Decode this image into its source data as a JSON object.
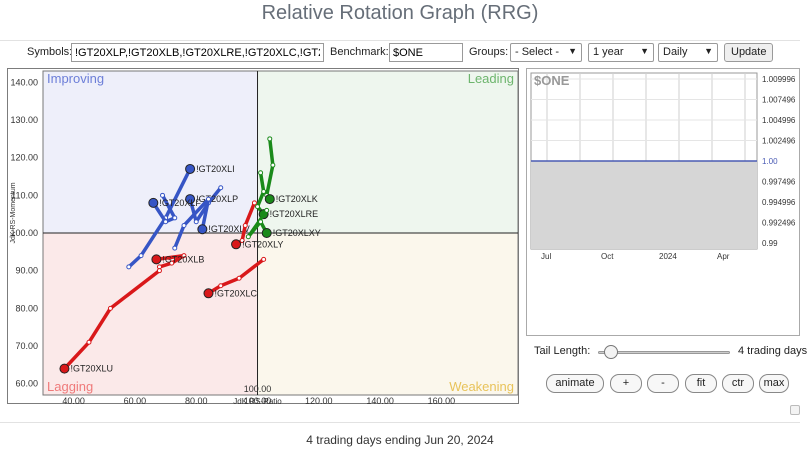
{
  "title": "Relative Rotation Graph (RRG)",
  "toolbar": {
    "symbols_label": "Symbols:",
    "symbols_value": "!GT20XLP,!GT20XLB,!GT20XLRE,!GT20XLC,!GT2",
    "benchmark_label": "Benchmark:",
    "benchmark_value": "$ONE",
    "groups_label": "Groups:",
    "groups_value": "- Select -",
    "period_value": "1 year",
    "frequency_value": "Daily",
    "update_label": "Update"
  },
  "chart_data": {
    "type": "scatter",
    "xlabel": "JdK RS-Ratio",
    "ylabel": "JdK RS-Momentum",
    "xlim": [
      30,
      185
    ],
    "ylim": [
      57,
      143
    ],
    "center": [
      100,
      100
    ],
    "x_ticks": [
      "40.00",
      "60.00",
      "80.00",
      "100.00",
      "120.00",
      "140.00",
      "160.00"
    ],
    "y_ticks": [
      "60.00",
      "70.00",
      "80.00",
      "90.00",
      "100.00",
      "110.00",
      "120.00",
      "130.00",
      "140.00"
    ],
    "quadrants": [
      {
        "name": "Improving",
        "color": "#6c7ed8",
        "fill": "#eeeffa"
      },
      {
        "name": "Leading",
        "color": "#6db56d",
        "fill": "#eef6ee"
      },
      {
        "name": "Lagging",
        "color": "#ef7a7a",
        "fill": "#fbe9e9"
      },
      {
        "name": "Weakening",
        "color": "#e8c35a",
        "fill": "#fbf7ec"
      }
    ],
    "series": [
      {
        "name": "!GT20XLI",
        "quadrant": "Improving",
        "color": "#3655c5",
        "points": [
          [
            58,
            91
          ],
          [
            62,
            94
          ],
          [
            70,
            104
          ],
          [
            78,
            117
          ]
        ]
      },
      {
        "name": "!GT20XLP",
        "quadrant": "Improving",
        "color": "#3655c5",
        "points": [
          [
            88,
            112
          ],
          [
            84,
            108
          ],
          [
            80,
            103
          ],
          [
            78,
            109
          ]
        ]
      },
      {
        "name": "!GT20XLF",
        "quadrant": "Improving",
        "color": "#3655c5",
        "points": [
          [
            69,
            110
          ],
          [
            73,
            104
          ],
          [
            70,
            103
          ],
          [
            66,
            108
          ]
        ]
      },
      {
        "name": "!GT20XLV",
        "quadrant": "Improving",
        "color": "#3655c5",
        "points": [
          [
            73,
            96
          ],
          [
            76,
            102
          ],
          [
            84,
            109
          ],
          [
            82,
            101
          ]
        ]
      },
      {
        "name": "!GT20XLB",
        "quadrant": "Lagging",
        "color": "#d9181a",
        "points": [
          [
            68,
            91
          ],
          [
            72,
            92
          ],
          [
            76,
            94
          ],
          [
            67,
            93
          ]
        ]
      },
      {
        "name": "!GT20XLC",
        "quadrant": "Lagging",
        "color": "#d9181a",
        "points": [
          [
            102,
            93
          ],
          [
            94,
            88
          ],
          [
            88,
            86
          ],
          [
            84,
            84
          ]
        ]
      },
      {
        "name": "!GT20XLU",
        "quadrant": "Lagging",
        "color": "#d9181a",
        "points": [
          [
            68,
            90
          ],
          [
            52,
            80
          ],
          [
            45,
            71
          ],
          [
            37,
            64
          ]
        ]
      },
      {
        "name": "!GT20XLY",
        "quadrant": "Lagging",
        "color": "#d9181a",
        "points": [
          [
            99,
            108
          ],
          [
            96,
            102
          ],
          [
            95,
            98
          ],
          [
            93,
            97
          ]
        ]
      },
      {
        "name": "!GT20XLK",
        "quadrant": "Leading",
        "color": "#1a8a1a",
        "points": [
          [
            104,
            125
          ],
          [
            105,
            118
          ],
          [
            103,
            110
          ],
          [
            104,
            109
          ]
        ]
      },
      {
        "name": "!GT20XLRE",
        "quadrant": "Leading",
        "color": "#1a8a1a",
        "points": [
          [
            101,
            116
          ],
          [
            102,
            111
          ],
          [
            100,
            107
          ],
          [
            102,
            105
          ]
        ]
      },
      {
        "name": "!GT20XLXY",
        "quadrant": "Leading",
        "color": "#1a8a1a",
        "points": [
          [
            103,
            106
          ],
          [
            97,
            99
          ],
          [
            101,
            103
          ],
          [
            103,
            100
          ]
        ]
      }
    ],
    "labels": {
      "center_value": "100.00"
    }
  },
  "mini_chart": {
    "title": "$ONE",
    "y_ticks": [
      "1.009996",
      "1.007496",
      "1.004996",
      "1.002496",
      "1.00",
      "0.997496",
      "0.994996",
      "0.992496",
      "0.99"
    ],
    "x_ticks": [
      "Jul",
      "Oct",
      "2024",
      "Apr"
    ],
    "value": "1.00",
    "line_color": "#4a5bb4",
    "fill_color": "#d6d6d6"
  },
  "controls": {
    "tail_label": "Tail Length:",
    "tail_value": "4 trading days",
    "tail_days": 4,
    "tail_range": [
      1,
      60
    ],
    "buttons": [
      "animate",
      "+",
      "-",
      "fit",
      "ctr",
      "max"
    ]
  },
  "footer": "4 trading days ending Jun 20, 2024"
}
